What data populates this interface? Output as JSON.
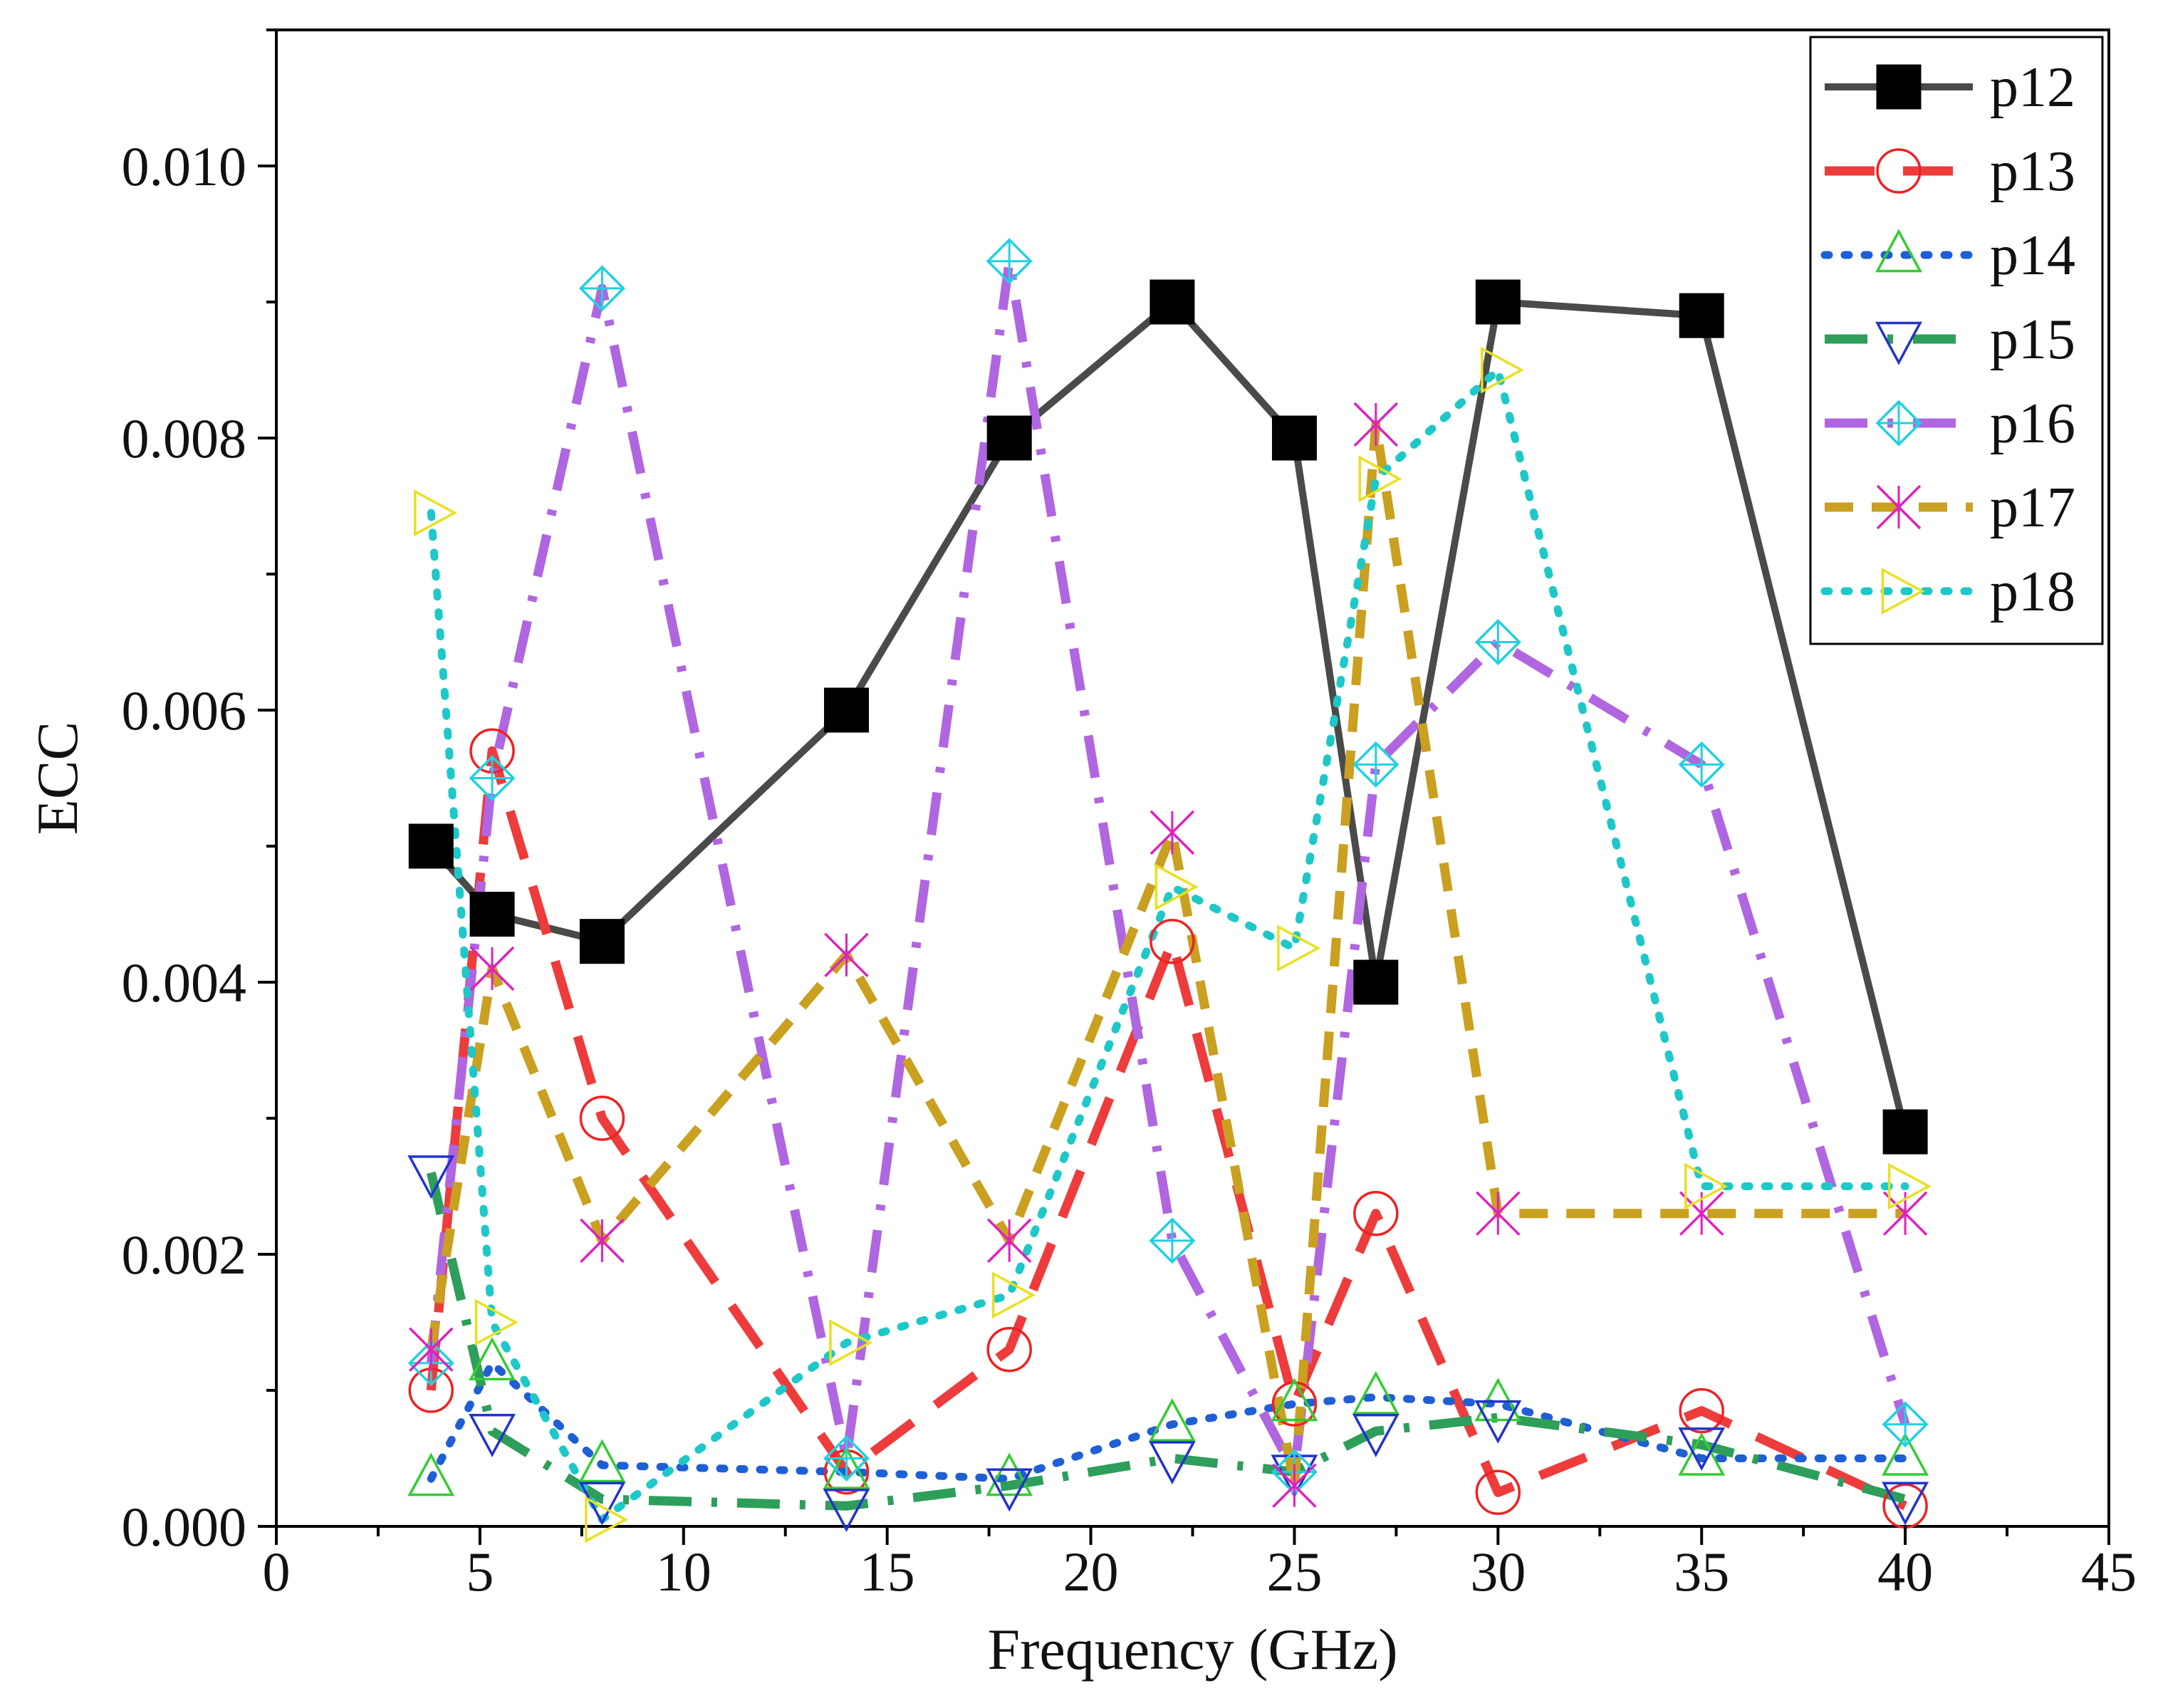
{
  "chart_data": {
    "type": "line",
    "title": "",
    "xlabel": "Frequency (GHz)",
    "ylabel": "ECC",
    "xlim": [
      0,
      45
    ],
    "ylim": [
      0,
      0.011
    ],
    "xticks": [
      0,
      5,
      10,
      15,
      20,
      25,
      30,
      35,
      40,
      45
    ],
    "xtick_labels": [
      "0",
      "5",
      "10",
      "15",
      "20",
      "25",
      "30",
      "35",
      "40",
      "45"
    ],
    "yticks": [
      0,
      0.002,
      0.004,
      0.006,
      0.008,
      0.01
    ],
    "ytick_labels": [
      "0.000",
      "0.002",
      "0.004",
      "0.006",
      "0.008",
      "0.010"
    ],
    "legend_position": "top-right",
    "series": [
      {
        "name": "p12",
        "color": "#4a4a4a",
        "marker": "square",
        "marker_color": "#000000",
        "dash": "solid",
        "x": [
          3.8,
          5.3,
          8,
          14,
          18,
          22,
          25,
          27,
          30,
          35,
          40
        ],
        "y": [
          0.005,
          0.0045,
          0.0043,
          0.006,
          0.008,
          0.009,
          0.008,
          0.004,
          0.009,
          0.0089,
          0.0029
        ]
      },
      {
        "name": "p13",
        "color": "#ee3b3b",
        "marker": "circle",
        "marker_color": "#ee2222",
        "dash": "long-dash",
        "x": [
          3.8,
          5.3,
          8,
          14,
          18,
          22,
          25,
          27,
          30,
          35,
          40
        ],
        "y": [
          0.001,
          0.0057,
          0.003,
          0.0004,
          0.0013,
          0.0043,
          0.0009,
          0.0023,
          0.00025,
          0.00085,
          0.00015
        ]
      },
      {
        "name": "p14",
        "color": "#1f5fd6",
        "marker": "triangle-up",
        "marker_color": "#33cc33",
        "dash": "dot",
        "x": [
          3.8,
          5.3,
          8,
          14,
          18,
          22,
          25,
          27,
          30,
          35,
          40
        ],
        "y": [
          0.00035,
          0.0012,
          0.00045,
          0.0004,
          0.00035,
          0.00075,
          0.0009,
          0.00095,
          0.0009,
          0.0005,
          0.0005
        ]
      },
      {
        "name": "p15",
        "color": "#2e9e5b",
        "marker": "triangle-down",
        "marker_color": "#2233cc",
        "dash": "dash-dot",
        "x": [
          3.8,
          5.3,
          8,
          14,
          18,
          22,
          25,
          27,
          30,
          35,
          40
        ],
        "y": [
          0.0026,
          0.0007,
          0.0002,
          0.00015,
          0.0003,
          0.0005,
          0.0004,
          0.0007,
          0.0008,
          0.0006,
          0.0002
        ]
      },
      {
        "name": "p16",
        "color": "#b066e0",
        "marker": "crossed-diamond",
        "marker_color": "#22d0e0",
        "dash": "dash-dot",
        "x": [
          3.8,
          5.3,
          8,
          14,
          18,
          22,
          25,
          27,
          30,
          35,
          40
        ],
        "y": [
          0.0012,
          0.0055,
          0.0091,
          0.0005,
          0.0093,
          0.0021,
          0.0004,
          0.0056,
          0.0065,
          0.0056,
          0.00075
        ]
      },
      {
        "name": "p17",
        "color": "#c9a020",
        "marker": "x-star",
        "marker_color": "#e020c0",
        "dash": "short-dash",
        "x": [
          3.8,
          5.3,
          8,
          14,
          18,
          22,
          25,
          27,
          30,
          35,
          40
        ],
        "y": [
          0.0013,
          0.0041,
          0.0021,
          0.0042,
          0.0021,
          0.0051,
          0.0003,
          0.0081,
          0.0023,
          0.0023,
          0.0023
        ]
      },
      {
        "name": "p18",
        "color": "#1ec8c8",
        "marker": "triangle-right",
        "marker_color": "#e8e020",
        "dash": "dot",
        "x": [
          3.8,
          5.3,
          8,
          14,
          18,
          22,
          25,
          27,
          30,
          35,
          40
        ],
        "y": [
          0.00745,
          0.0015,
          5e-05,
          0.00135,
          0.0017,
          0.0047,
          0.00425,
          0.0077,
          0.0085,
          0.0025,
          0.0025
        ]
      }
    ]
  }
}
